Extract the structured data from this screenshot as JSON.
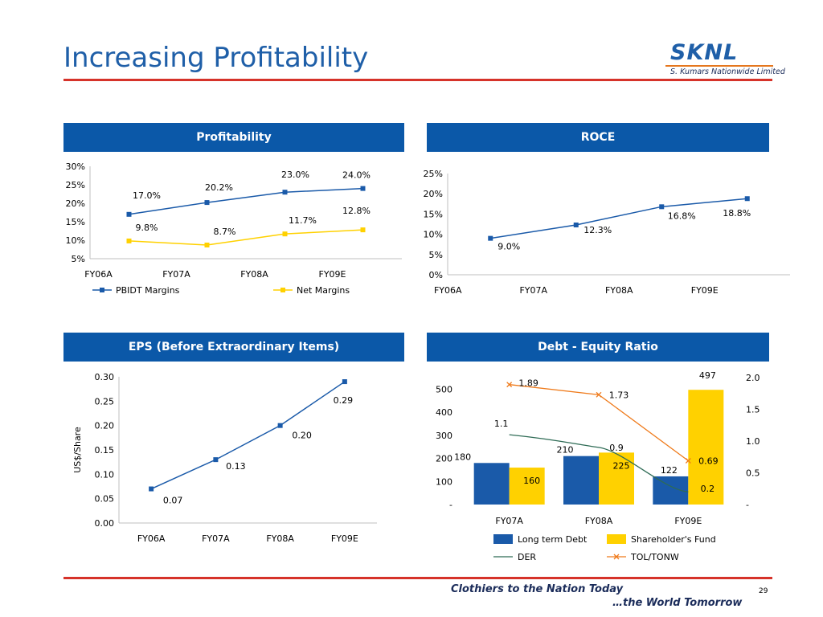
{
  "slide": {
    "title": "Increasing Profitability",
    "logo_main": "SKNL",
    "logo_sub": "S. Kumars Nationwide Limited",
    "tagline_1": "Clothiers to the Nation Today",
    "tagline_2": "…the World Tomorrow",
    "page_number": "29"
  },
  "panels": {
    "profitability": "Profitability",
    "roce": "ROCE",
    "eps": "EPS (Before Extraordinary Items)",
    "der": "Debt - Equity Ratio"
  },
  "colors": {
    "header_blue": "#0b58a8",
    "series_blue": "#1a5aa9",
    "series_yellow": "#ffd100",
    "tol_orange": "#ef7a1a",
    "der_green": "#2e6b55",
    "accent_red": "#d6332a"
  },
  "chart_data": [
    {
      "id": "profitability",
      "type": "line",
      "categories": [
        "FY06A",
        "FY07A",
        "FY08A",
        "FY09E"
      ],
      "series": [
        {
          "name": "PBIDT Margins",
          "values": [
            17.0,
            20.2,
            23.0,
            24.0
          ],
          "labels": [
            "17.0%",
            "20.2%",
            "23.0%",
            "24.0%"
          ]
        },
        {
          "name": "Net Margins",
          "values": [
            9.8,
            8.7,
            11.7,
            12.8
          ],
          "labels": [
            "9.8%",
            "8.7%",
            "11.7%",
            "12.8%"
          ]
        }
      ],
      "yticks": [
        "5%",
        "10%",
        "15%",
        "20%",
        "25%",
        "30%"
      ],
      "ylim": [
        5,
        30
      ],
      "legend": "bottom"
    },
    {
      "id": "roce",
      "type": "line",
      "categories": [
        "FY06A",
        "FY07A",
        "FY08A",
        "FY09E"
      ],
      "series": [
        {
          "values": [
            9.0,
            12.3,
            16.8,
            18.8
          ],
          "labels": [
            "9.0%",
            "12.3%",
            "16.8%",
            "18.8%"
          ]
        }
      ],
      "yticks": [
        "0%",
        "5%",
        "10%",
        "15%",
        "20%",
        "25%"
      ],
      "ylim": [
        0,
        25
      ]
    },
    {
      "id": "eps",
      "type": "line",
      "categories": [
        "FY06A",
        "FY07A",
        "FY08A",
        "FY09E"
      ],
      "series": [
        {
          "values": [
            0.07,
            0.13,
            0.2,
            0.29
          ],
          "labels": [
            "0.07",
            "0.13",
            "0.20",
            "0.29"
          ]
        }
      ],
      "yticks": [
        "0.00",
        "0.05",
        "0.10",
        "0.15",
        "0.20",
        "0.25",
        "0.30"
      ],
      "ylim": [
        0,
        0.3
      ],
      "ylabel": "US$/Share"
    },
    {
      "id": "der",
      "type": "bar",
      "categories": [
        "FY07A",
        "FY08A",
        "FY09E"
      ],
      "series": [
        {
          "name": "Long term Debt",
          "values": [
            180,
            210,
            122
          ],
          "labels": [
            "180",
            "210",
            "122"
          ],
          "axis": "left"
        },
        {
          "name": "Shareholder's Fund",
          "values": [
            160,
            225,
            497
          ],
          "labels": [
            "160",
            "225",
            "497"
          ],
          "axis": "left"
        },
        {
          "name": "DER",
          "type": "line",
          "values": [
            1.1,
            0.9,
            0.2
          ],
          "labels": [
            "1.1",
            "0.9",
            "0.2"
          ],
          "axis": "right"
        },
        {
          "name": "TOL/TONW",
          "type": "line",
          "values": [
            1.89,
            1.73,
            0.69
          ],
          "labels": [
            "1.89",
            "1.73",
            "0.69"
          ],
          "axis": "right"
        }
      ],
      "yticks_left": [
        "-",
        "100",
        "200",
        "300",
        "400",
        "500"
      ],
      "ylim_left": [
        0,
        550
      ],
      "yticks_right": [
        "-",
        "0.5",
        "1.0",
        "1.5",
        "2.0"
      ],
      "ylim_right": [
        0,
        2.0
      ],
      "legend": "bottom"
    }
  ]
}
